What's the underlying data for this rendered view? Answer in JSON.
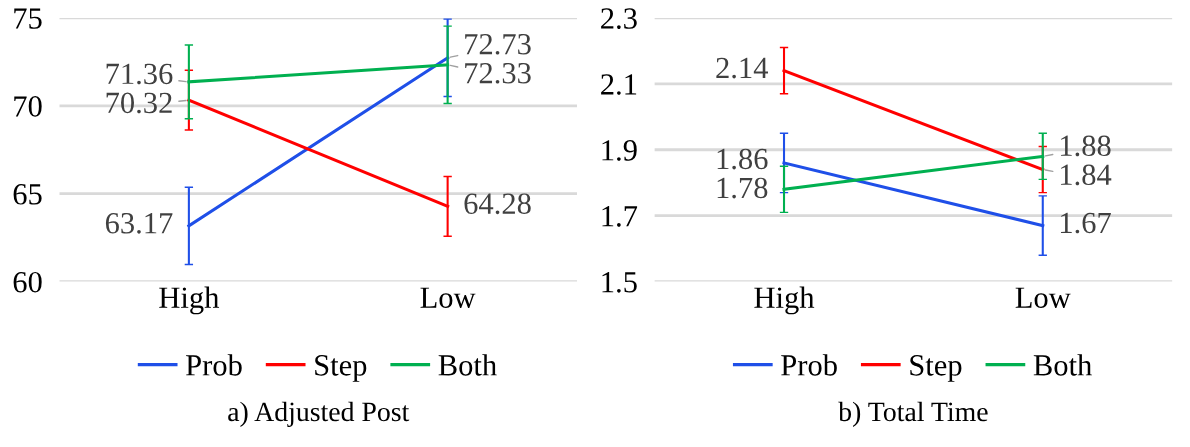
{
  "chart_data": [
    {
      "type": "line",
      "title": "a) Adjusted Post",
      "categories": [
        "High",
        "Low"
      ],
      "ylim": [
        60,
        75
      ],
      "yticks": [
        60,
        65,
        70,
        75
      ],
      "grid": "y",
      "legend": "bottom",
      "marker": "none",
      "data_labels": true,
      "series": [
        {
          "name": "Prob",
          "color": "#1f4fe8",
          "values": [
            63.17,
            72.73
          ],
          "errors": [
            2.2,
            2.2
          ]
        },
        {
          "name": "Step",
          "color": "#ff0000",
          "values": [
            70.32,
            64.28
          ],
          "errors": [
            1.7,
            1.7
          ]
        },
        {
          "name": "Both",
          "color": "#00b050",
          "values": [
            71.36,
            72.33
          ],
          "errors": [
            2.1,
            2.2
          ]
        }
      ]
    },
    {
      "type": "line",
      "title": "b) Total Time",
      "categories": [
        "High",
        "Low"
      ],
      "ylim": [
        1.5,
        2.3
      ],
      "yticks": [
        1.5,
        1.7,
        1.9,
        2.1,
        2.3
      ],
      "grid": "y",
      "legend": "bottom",
      "marker": "none",
      "data_labels": true,
      "series": [
        {
          "name": "Prob",
          "color": "#1f4fe8",
          "values": [
            1.86,
            1.67
          ],
          "errors": [
            0.09,
            0.09
          ]
        },
        {
          "name": "Step",
          "color": "#ff0000",
          "values": [
            2.14,
            1.84
          ],
          "errors": [
            0.07,
            0.07
          ]
        },
        {
          "name": "Both",
          "color": "#00b050",
          "values": [
            1.78,
            1.88
          ],
          "errors": [
            0.07,
            0.07
          ]
        }
      ]
    }
  ]
}
